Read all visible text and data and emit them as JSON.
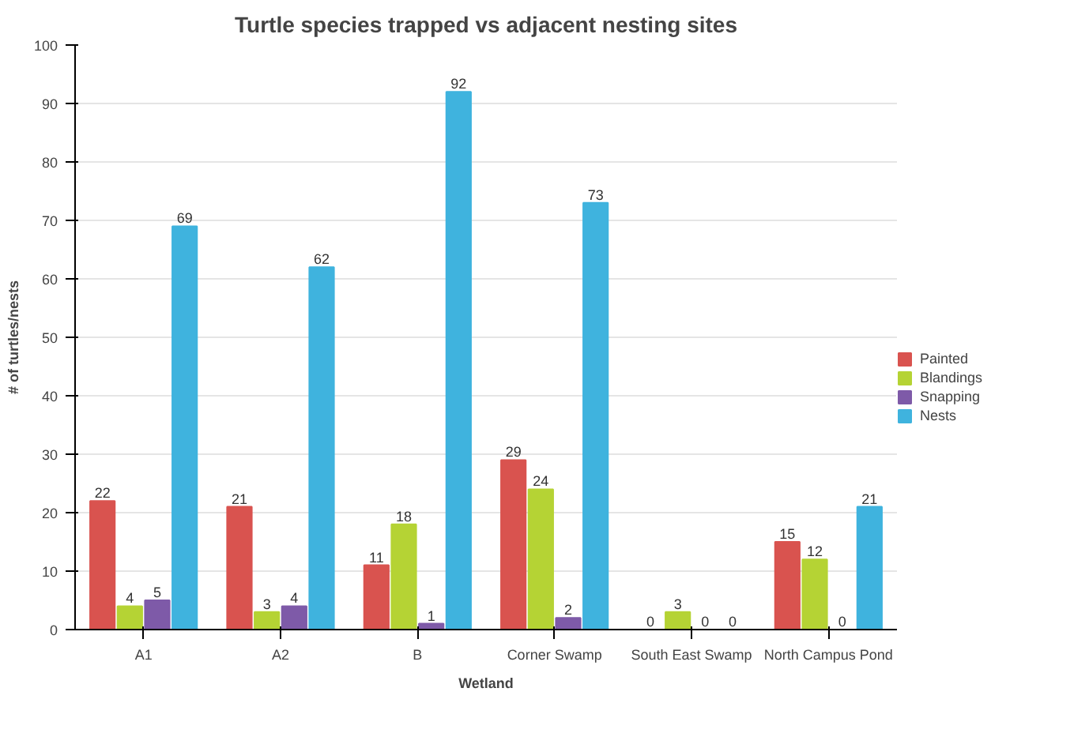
{
  "chart_data": {
    "type": "bar",
    "title": "Turtle species trapped vs adjacent nesting sites",
    "xlabel": "Wetland",
    "ylabel": "# of turtles/nests",
    "categories": [
      "A1",
      "A2",
      "B",
      "Corner Swamp",
      "South East Swamp",
      "North Campus Pond"
    ],
    "series": [
      {
        "name": "Painted",
        "color": "#d9534f",
        "values": [
          22,
          21,
          11,
          29,
          0,
          15
        ]
      },
      {
        "name": "Blandings",
        "color": "#b5d334",
        "values": [
          4,
          3,
          18,
          24,
          3,
          12
        ]
      },
      {
        "name": "Snapping",
        "color": "#7e5aa8",
        "values": [
          5,
          4,
          1,
          2,
          0,
          0
        ]
      },
      {
        "name": "Nests",
        "color": "#3fb3de",
        "values": [
          69,
          62,
          92,
          73,
          0,
          21
        ]
      }
    ],
    "ylim": [
      0,
      100
    ],
    "yticks": [
      0,
      10,
      20,
      30,
      40,
      50,
      60,
      70,
      80,
      90,
      100
    ],
    "grid": "y",
    "legend": "right",
    "data_labels": true
  }
}
